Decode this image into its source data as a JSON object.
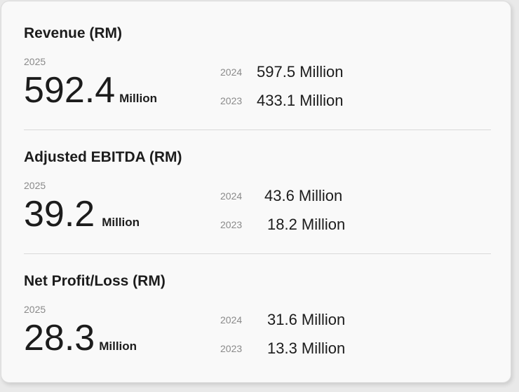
{
  "sections": [
    {
      "title": "Revenue (RM)",
      "current": {
        "year": "2025",
        "value": "592.4",
        "unit": "Million"
      },
      "previous": [
        {
          "year": "2024",
          "value": "597.5 Million"
        },
        {
          "year": "2023",
          "value": "433.1 Million"
        }
      ]
    },
    {
      "title": "Adjusted EBITDA (RM)",
      "current": {
        "year": "2025",
        "value": "39.2",
        "unit": "Million"
      },
      "previous": [
        {
          "year": "2024",
          "value": "43.6 Million"
        },
        {
          "year": "2023",
          "value": "18.2 Million"
        }
      ]
    },
    {
      "title": "Net Profit/Loss (RM)",
      "current": {
        "year": "2025",
        "value": "28.3",
        "unit": "Million"
      },
      "previous": [
        {
          "year": "2024",
          "value": "31.6 Million"
        },
        {
          "year": "2023",
          "value": "13.3 Million"
        }
      ]
    }
  ]
}
